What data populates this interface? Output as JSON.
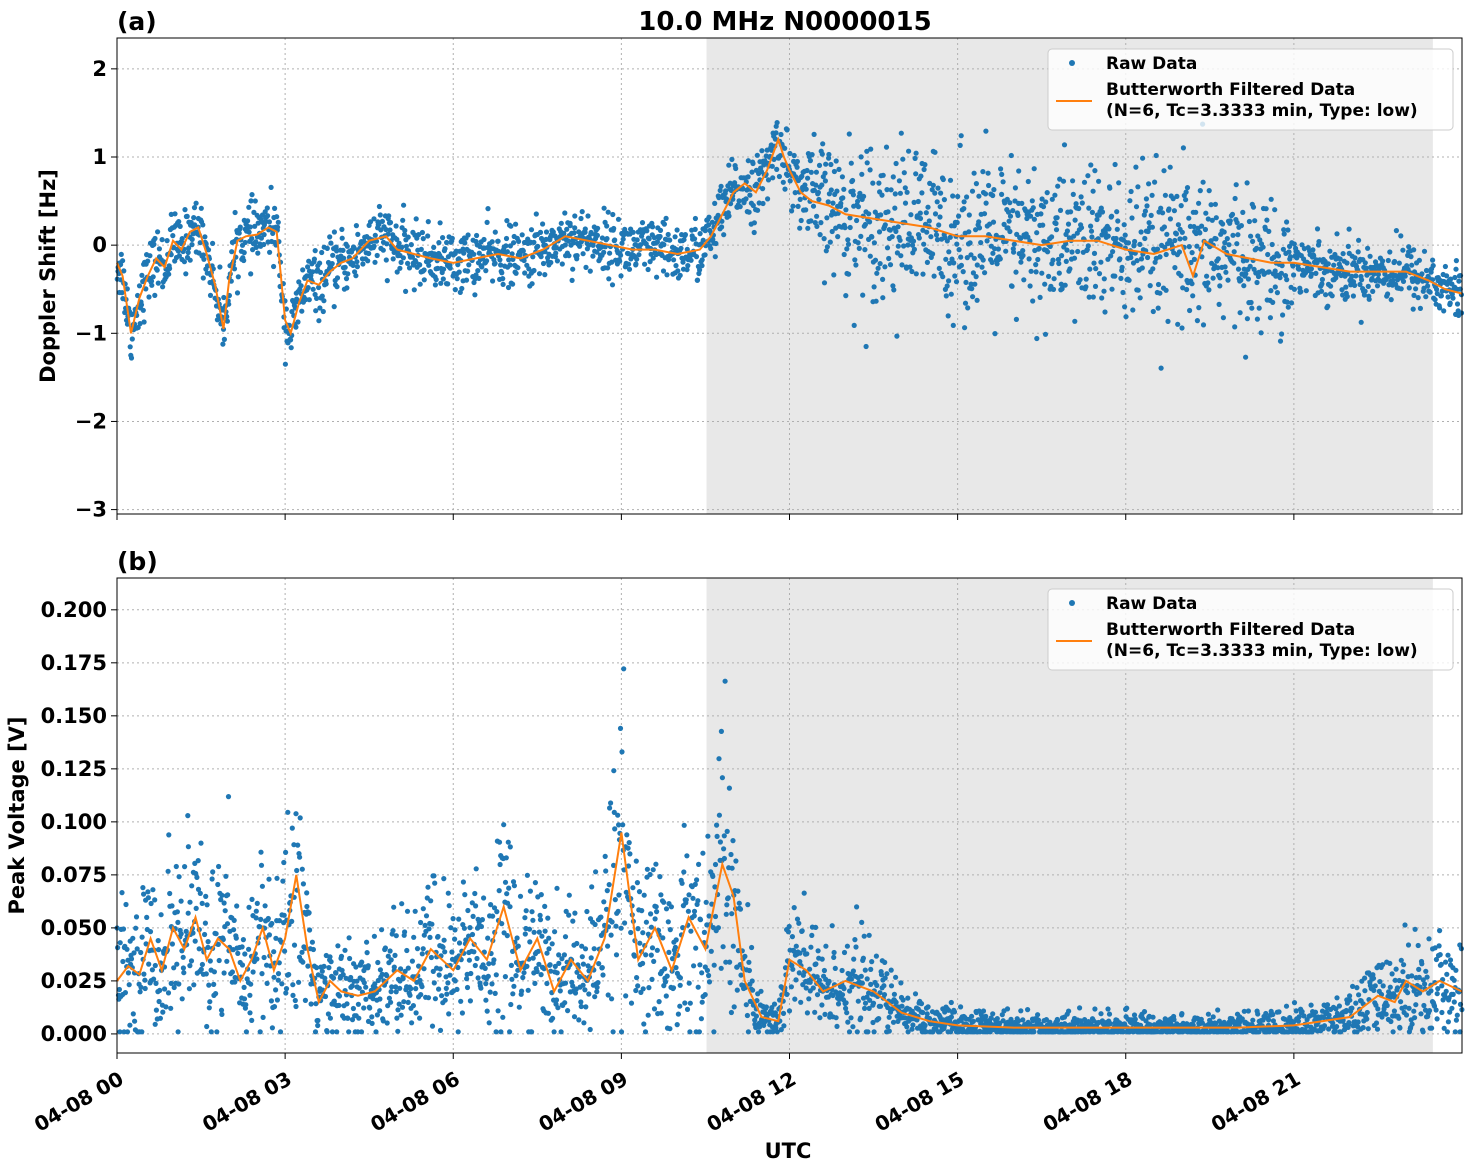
{
  "figure": {
    "title": "10.0 MHz N0000015",
    "xlabel": "UTC"
  },
  "colors": {
    "raw": "#1f77b4",
    "filtered": "#ff7f0e",
    "shade": "#e8e8e8",
    "grid": "#b0b0b0"
  },
  "chart_data": [
    {
      "type": "scatter",
      "panel_label": "(a)",
      "ylabel": "Doppler Shift [Hz]",
      "x_unit": "hours UTC on 04-08",
      "xlim": [
        0,
        24
      ],
      "ylim": [
        -3.05,
        2.35
      ],
      "x_ticks": [
        0,
        3,
        6,
        9,
        12,
        15,
        18,
        21
      ],
      "x_tick_labels": [
        "04-08 00",
        "04-08 03",
        "04-08 06",
        "04-08 09",
        "04-08 12",
        "04-08 15",
        "04-08 18",
        "04-08 21"
      ],
      "y_ticks": [
        2,
        1,
        0,
        -1,
        -2,
        -3
      ],
      "y_tick_labels": [
        "2",
        "1",
        "0",
        "−1",
        "−2",
        "−3"
      ],
      "shaded_x_range": [
        10.52,
        23.48
      ],
      "grid": true,
      "legend": {
        "position": "top-right",
        "entries": [
          "Raw Data",
          "Butterworth Filtered Data\n(N=6, Tc=3.3333 min, Type: low)"
        ]
      },
      "series": [
        {
          "name": "Butterworth Filtered Data (N=6, Tc=3.3333 min, Type: low)",
          "x": [
            0,
            0.1,
            0.25,
            0.4,
            0.55,
            0.7,
            0.85,
            1.0,
            1.15,
            1.3,
            1.45,
            1.6,
            1.75,
            1.9,
            2.0,
            2.15,
            2.3,
            2.5,
            2.7,
            2.85,
            3.0,
            3.1,
            3.25,
            3.4,
            3.6,
            3.8,
            4.0,
            4.2,
            4.5,
            4.8,
            5.0,
            5.3,
            5.6,
            6.0,
            6.4,
            6.8,
            7.2,
            7.6,
            8.0,
            8.4,
            8.8,
            9.2,
            9.6,
            10.0,
            10.4,
            10.6,
            10.8,
            11.0,
            11.2,
            11.4,
            11.6,
            11.8,
            11.9,
            12.0,
            12.2,
            12.4,
            12.7,
            13.0,
            13.5,
            14.0,
            14.5,
            15.0,
            15.5,
            16.0,
            16.5,
            17.0,
            17.5,
            18.0,
            18.5,
            19.0,
            19.2,
            19.4,
            19.8,
            20.2,
            20.6,
            21.0,
            21.5,
            22.0,
            22.5,
            23.0,
            23.4,
            23.7,
            24.0
          ],
          "y": [
            -0.2,
            -0.35,
            -1.0,
            -0.6,
            -0.35,
            -0.15,
            -0.25,
            0.05,
            -0.05,
            0.15,
            0.2,
            -0.1,
            -0.45,
            -0.95,
            -0.4,
            0.05,
            0.1,
            0.12,
            0.2,
            0.15,
            -0.85,
            -1.0,
            -0.65,
            -0.4,
            -0.45,
            -0.3,
            -0.2,
            -0.15,
            0.05,
            0.1,
            -0.05,
            -0.1,
            -0.15,
            -0.2,
            -0.15,
            -0.1,
            -0.15,
            -0.05,
            0.1,
            0.05,
            0.0,
            -0.05,
            -0.05,
            -0.1,
            -0.05,
            0.1,
            0.35,
            0.6,
            0.7,
            0.6,
            0.85,
            1.2,
            1.0,
            0.85,
            0.6,
            0.5,
            0.45,
            0.35,
            0.3,
            0.25,
            0.2,
            0.1,
            0.1,
            0.05,
            0.0,
            0.05,
            0.05,
            -0.05,
            -0.1,
            0.0,
            -0.35,
            0.05,
            -0.1,
            -0.15,
            -0.2,
            -0.2,
            -0.25,
            -0.3,
            -0.3,
            -0.3,
            -0.4,
            -0.5,
            -0.55
          ]
        }
      ]
    },
    {
      "type": "scatter",
      "panel_label": "(b)",
      "ylabel": "Peak Voltage [V]",
      "x_unit": "hours UTC on 04-08",
      "xlim": [
        0,
        24
      ],
      "ylim": [
        -0.009,
        0.215
      ],
      "x_ticks": [
        0,
        3,
        6,
        9,
        12,
        15,
        18,
        21
      ],
      "x_tick_labels": [
        "04-08 00",
        "04-08 03",
        "04-08 06",
        "04-08 09",
        "04-08 12",
        "04-08 15",
        "04-08 18",
        "04-08 21"
      ],
      "y_ticks": [
        0.2,
        0.175,
        0.15,
        0.125,
        0.1,
        0.075,
        0.05,
        0.025,
        0.0
      ],
      "y_tick_labels": [
        "0.200",
        "0.175",
        "0.150",
        "0.125",
        "0.100",
        "0.075",
        "0.050",
        "0.025",
        "0.000"
      ],
      "shaded_x_range": [
        10.52,
        23.48
      ],
      "grid": true,
      "legend": {
        "position": "top-right",
        "entries": [
          "Raw Data",
          "Butterworth Filtered Data\n(N=6, Tc=3.3333 min, Type: low)"
        ]
      },
      "series": [
        {
          "name": "Butterworth Filtered Data (N=6, Tc=3.3333 min, Type: low)",
          "x": [
            0,
            0.2,
            0.4,
            0.6,
            0.8,
            1.0,
            1.2,
            1.4,
            1.6,
            1.8,
            2.0,
            2.2,
            2.4,
            2.6,
            2.8,
            3.0,
            3.2,
            3.4,
            3.6,
            3.8,
            4.0,
            4.3,
            4.6,
            5.0,
            5.3,
            5.6,
            6.0,
            6.3,
            6.6,
            6.9,
            7.2,
            7.5,
            7.8,
            8.1,
            8.4,
            8.7,
            9.0,
            9.3,
            9.6,
            9.9,
            10.2,
            10.5,
            10.8,
            11.0,
            11.2,
            11.5,
            11.8,
            12.0,
            12.3,
            12.6,
            13.0,
            13.5,
            14.0,
            14.5,
            15.0,
            16.0,
            17.0,
            18.0,
            19.0,
            20.0,
            21.0,
            21.5,
            22.0,
            22.5,
            22.8,
            23.0,
            23.3,
            23.6,
            24.0
          ],
          "y": [
            0.025,
            0.032,
            0.028,
            0.045,
            0.03,
            0.05,
            0.04,
            0.055,
            0.035,
            0.045,
            0.04,
            0.025,
            0.035,
            0.05,
            0.03,
            0.045,
            0.075,
            0.04,
            0.015,
            0.025,
            0.02,
            0.018,
            0.02,
            0.03,
            0.025,
            0.04,
            0.03,
            0.045,
            0.035,
            0.06,
            0.03,
            0.045,
            0.02,
            0.035,
            0.025,
            0.045,
            0.095,
            0.035,
            0.05,
            0.03,
            0.055,
            0.04,
            0.08,
            0.065,
            0.025,
            0.008,
            0.006,
            0.035,
            0.03,
            0.02,
            0.025,
            0.02,
            0.01,
            0.006,
            0.004,
            0.003,
            0.003,
            0.003,
            0.003,
            0.003,
            0.004,
            0.006,
            0.008,
            0.018,
            0.015,
            0.025,
            0.02,
            0.025,
            0.02
          ]
        }
      ]
    }
  ]
}
